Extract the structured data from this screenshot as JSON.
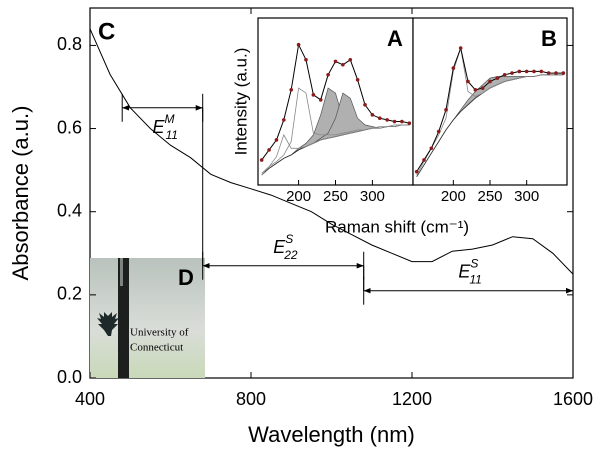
{
  "chart_data": [
    {
      "type": "line",
      "panel_label": "C",
      "xlabel": "Wavelength (nm)",
      "ylabel": "Absorbance (a.u.)",
      "x": [
        400,
        450,
        500,
        550,
        600,
        650,
        700,
        750,
        800,
        850,
        900,
        950,
        1000,
        1050,
        1100,
        1150,
        1200,
        1250,
        1300,
        1350,
        1400,
        1450,
        1500,
        1550,
        1600
      ],
      "values": [
        0.84,
        0.73,
        0.65,
        0.6,
        0.56,
        0.53,
        0.49,
        0.47,
        0.455,
        0.44,
        0.42,
        0.4,
        0.37,
        0.345,
        0.32,
        0.3,
        0.28,
        0.28,
        0.305,
        0.31,
        0.32,
        0.34,
        0.335,
        0.3,
        0.25
      ],
      "color": "#000000",
      "xlim": [
        400,
        1600
      ],
      "ylim": [
        0,
        0.89
      ],
      "xticks": [
        400,
        800,
        1200,
        1600
      ],
      "yticks": [
        {
          "value": 0,
          "label": "0.0"
        },
        0.2,
        0.4,
        0.6,
        0.8
      ],
      "annotations": [
        {
          "text": "E",
          "sup": "M",
          "sub": "11",
          "x": [
            480,
            680
          ],
          "y": 0.65
        },
        {
          "text": "E",
          "sup": "S",
          "sub": "22",
          "x": [
            680,
            1080
          ],
          "y": 0.27
        },
        {
          "text": "E",
          "sup": "S",
          "sub": "11",
          "x": [
            1080,
            1600
          ],
          "y": 0.21
        }
      ]
    },
    {
      "type": "spectrum",
      "panel_label": "A",
      "xlabel": "Raman shift (cm⁻¹)",
      "ylabel": "Intensity (a.u.)",
      "x": [
        150,
        160,
        170,
        180,
        190,
        200,
        210,
        220,
        230,
        240,
        250,
        260,
        270,
        280,
        290,
        300,
        310,
        320,
        330,
        340,
        350
      ],
      "xlim": [
        145,
        355
      ],
      "ylim": [
        0,
        1
      ],
      "xticks": [
        200,
        250,
        300
      ],
      "series": [
        {
          "style": "baseline",
          "color": "#333333",
          "values": [
            0.06,
            0.1,
            0.13,
            0.16,
            0.18,
            0.21,
            0.23,
            0.25,
            0.27,
            0.28,
            0.29,
            0.3,
            0.31,
            0.32,
            0.33,
            0.34,
            0.34,
            0.35,
            0.35,
            0.36,
            0.36
          ]
        },
        {
          "style": "filled",
          "color": "#b0b0b0",
          "values": [
            0.06,
            0.1,
            0.13,
            0.16,
            0.18,
            0.22,
            0.25,
            0.3,
            0.42,
            0.58,
            0.55,
            0.4,
            0.36,
            0.34,
            0.34,
            0.34,
            0.34,
            0.35,
            0.35,
            0.36,
            0.36
          ]
        },
        {
          "style": "filled",
          "color": "#b0b0b0",
          "values": [
            0.06,
            0.1,
            0.13,
            0.16,
            0.18,
            0.21,
            0.23,
            0.25,
            0.28,
            0.31,
            0.4,
            0.55,
            0.52,
            0.4,
            0.36,
            0.35,
            0.34,
            0.35,
            0.35,
            0.36,
            0.36
          ]
        },
        {
          "style": "line",
          "color": "#888888",
          "values": [
            0.07,
            0.11,
            0.14,
            0.18,
            0.26,
            0.58,
            0.55,
            0.31,
            0.3,
            0.3,
            0.3,
            0.31,
            0.32,
            0.33,
            0.33,
            0.34,
            0.35,
            0.35,
            0.36,
            0.36,
            0.36
          ]
        },
        {
          "style": "line",
          "color": "#888888",
          "values": [
            0.06,
            0.11,
            0.17,
            0.3,
            0.22,
            0.22,
            0.23,
            0.25,
            0.27,
            0.28,
            0.29,
            0.3,
            0.31,
            0.32,
            0.33,
            0.34,
            0.34,
            0.35,
            0.35,
            0.36,
            0.36
          ]
        },
        {
          "style": "points",
          "color": "#8b1a1a",
          "values": [
            0.15,
            0.21,
            0.27,
            0.39,
            0.57,
            0.84,
            0.75,
            0.54,
            0.51,
            0.66,
            0.74,
            0.72,
            0.75,
            0.63,
            0.48,
            0.42,
            0.4,
            0.39,
            0.38,
            0.38,
            0.37
          ]
        }
      ]
    },
    {
      "type": "spectrum",
      "panel_label": "B",
      "x": [
        150,
        160,
        170,
        180,
        190,
        200,
        210,
        220,
        230,
        240,
        250,
        260,
        270,
        280,
        290,
        300,
        310,
        320,
        330,
        340,
        350
      ],
      "xlim": [
        145,
        355
      ],
      "ylim": [
        0,
        1
      ],
      "xticks": [
        200,
        250,
        300
      ],
      "series": [
        {
          "style": "baseline",
          "color": "#333333",
          "values": [
            0.05,
            0.12,
            0.19,
            0.26,
            0.33,
            0.39,
            0.44,
            0.48,
            0.52,
            0.55,
            0.58,
            0.6,
            0.62,
            0.63,
            0.64,
            0.65,
            0.65,
            0.66,
            0.66,
            0.66,
            0.66
          ]
        },
        {
          "style": "filled",
          "color": "#b0b0b0",
          "values": [
            0.05,
            0.12,
            0.19,
            0.26,
            0.33,
            0.39,
            0.45,
            0.51,
            0.56,
            0.6,
            0.64,
            0.65,
            0.65,
            0.65,
            0.65,
            0.65,
            0.65,
            0.66,
            0.66,
            0.66,
            0.66
          ]
        },
        {
          "style": "line",
          "color": "#888888",
          "values": [
            0.06,
            0.14,
            0.22,
            0.3,
            0.4,
            0.68,
            0.82,
            0.56,
            0.53,
            0.55,
            0.58,
            0.6,
            0.62,
            0.63,
            0.64,
            0.65,
            0.65,
            0.66,
            0.66,
            0.66,
            0.66
          ]
        },
        {
          "style": "points",
          "color": "#8b1a1a",
          "values": [
            0.08,
            0.15,
            0.22,
            0.32,
            0.45,
            0.7,
            0.82,
            0.62,
            0.57,
            0.58,
            0.62,
            0.64,
            0.66,
            0.67,
            0.68,
            0.68,
            0.68,
            0.68,
            0.67,
            0.67,
            0.67
          ]
        }
      ]
    }
  ],
  "photo": {
    "label": "D",
    "text": [
      "University of",
      "Connecticut"
    ]
  }
}
